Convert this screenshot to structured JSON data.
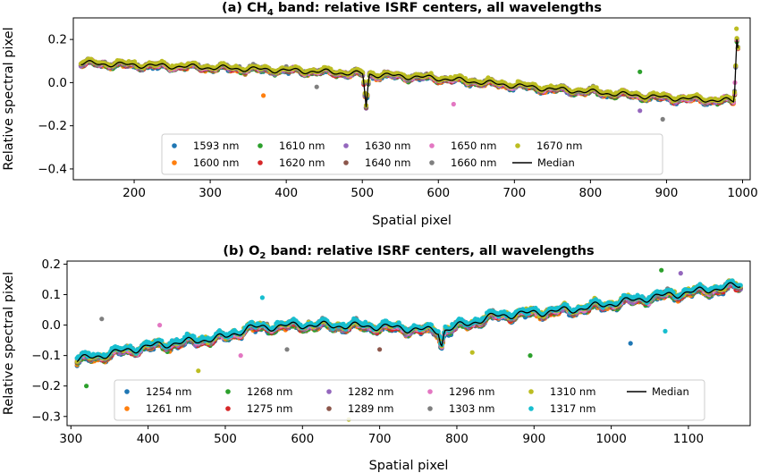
{
  "chart_data": [
    {
      "type": "scatter",
      "title": "(a) CH",
      "title_sub": "4",
      "title_rest": " band: relative ISRF centers, all wavelengths",
      "xlabel": "Spatial pixel",
      "ylabel": "Relative spectral pixel",
      "xlim": [
        120,
        1010
      ],
      "ylim": [
        -0.45,
        0.3
      ],
      "xticks": [
        200,
        300,
        400,
        500,
        600,
        700,
        800,
        900,
        1000
      ],
      "yticks": [
        0.2,
        0.0,
        -0.2,
        -0.4
      ],
      "ytick_labels": [
        "0.2",
        "0.0",
        "−0.2",
        "−0.4"
      ],
      "x_range": [
        130,
        995
      ],
      "trend": [
        [
          130,
          0.09
        ],
        [
          300,
          0.07
        ],
        [
          450,
          0.05
        ],
        [
          600,
          0.02
        ],
        [
          750,
          -0.03
        ],
        [
          900,
          -0.07
        ],
        [
          985,
          -0.085
        ]
      ],
      "median_features": [
        [
          505,
          -0.13
        ],
        [
          993,
          0.28
        ]
      ],
      "outliers": [
        [
          370,
          -0.06,
          "tab:orange"
        ],
        [
          440,
          -0.02,
          "tab:gray"
        ],
        [
          620,
          -0.1,
          "tab:pink"
        ],
        [
          865,
          0.05,
          "tab:green"
        ],
        [
          865,
          -0.13,
          "tab:purple"
        ],
        [
          895,
          -0.17,
          "tab:gray"
        ],
        [
          990,
          0.0,
          "tab:pink"
        ],
        [
          992,
          0.25,
          "tab:olive"
        ]
      ],
      "series": [
        {
          "name": "1593 nm",
          "color": "#1f77b4"
        },
        {
          "name": "1600 nm",
          "color": "#ff7f0e"
        },
        {
          "name": "1610 nm",
          "color": "#2ca02c"
        },
        {
          "name": "1620 nm",
          "color": "#d62728"
        },
        {
          "name": "1630 nm",
          "color": "#9467bd"
        },
        {
          "name": "1640 nm",
          "color": "#8c564b"
        },
        {
          "name": "1650 nm",
          "color": "#e377c2"
        },
        {
          "name": "1660 nm",
          "color": "#7f7f7f"
        },
        {
          "name": "1670 nm",
          "color": "#bcbd22"
        },
        {
          "name": "Median",
          "color": "#000000",
          "line": true
        }
      ],
      "legend_placement": "lower-center"
    },
    {
      "type": "scatter",
      "title": "(b) O",
      "title_sub": "2",
      "title_rest": " band: relative ISRF centers, all wavelengths",
      "xlabel": "Spatial pixel",
      "ylabel": "Relative spectral pixel",
      "xlim": [
        295,
        1180
      ],
      "ylim": [
        -0.33,
        0.21
      ],
      "xticks": [
        300,
        400,
        500,
        600,
        700,
        800,
        900,
        1000,
        1100
      ],
      "yticks": [
        0.2,
        0.1,
        0.0,
        -0.1,
        -0.2,
        -0.3
      ],
      "ytick_labels": [
        "0.2",
        "0.1",
        "0.0",
        "−0.1",
        "−0.2",
        "−0.3"
      ],
      "x_range": [
        308,
        1168
      ],
      "trend": [
        [
          308,
          -0.115
        ],
        [
          400,
          -0.07
        ],
        [
          500,
          -0.04
        ],
        [
          530,
          -0.01
        ],
        [
          600,
          0.0
        ],
        [
          700,
          -0.005
        ],
        [
          780,
          -0.02
        ],
        [
          850,
          0.03
        ],
        [
          950,
          0.05
        ],
        [
          1050,
          0.09
        ],
        [
          1168,
          0.13
        ]
      ],
      "median_features": [
        [
          780,
          -0.08
        ]
      ],
      "outliers": [
        [
          320,
          -0.2,
          "tab:green"
        ],
        [
          340,
          0.02,
          "tab:gray"
        ],
        [
          415,
          0.0,
          "tab:pink"
        ],
        [
          465,
          -0.15,
          "tab:olive"
        ],
        [
          520,
          -0.1,
          "tab:pink"
        ],
        [
          548,
          0.09,
          "tab:cyan"
        ],
        [
          580,
          -0.08,
          "tab:gray"
        ],
        [
          660,
          -0.31,
          "tab:olive"
        ],
        [
          700,
          -0.08,
          "tab:brown"
        ],
        [
          820,
          -0.09,
          "tab:olive"
        ],
        [
          895,
          -0.1,
          "tab:green"
        ],
        [
          1025,
          -0.06,
          "tab:blue"
        ],
        [
          1065,
          0.18,
          "tab:green"
        ],
        [
          1070,
          -0.02,
          "tab:cyan"
        ],
        [
          1090,
          0.17,
          "tab:purple"
        ]
      ],
      "series": [
        {
          "name": "1254 nm",
          "color": "#1f77b4"
        },
        {
          "name": "1261 nm",
          "color": "#ff7f0e"
        },
        {
          "name": "1268 nm",
          "color": "#2ca02c"
        },
        {
          "name": "1275 nm",
          "color": "#d62728"
        },
        {
          "name": "1282 nm",
          "color": "#9467bd"
        },
        {
          "name": "1289 nm",
          "color": "#8c564b"
        },
        {
          "name": "1296 nm",
          "color": "#e377c2"
        },
        {
          "name": "1303 nm",
          "color": "#7f7f7f"
        },
        {
          "name": "1310 nm",
          "color": "#bcbd22"
        },
        {
          "name": "1317 nm",
          "color": "#17becf"
        },
        {
          "name": "Median",
          "color": "#000000",
          "line": true
        }
      ],
      "legend_placement": "lower-center"
    }
  ]
}
